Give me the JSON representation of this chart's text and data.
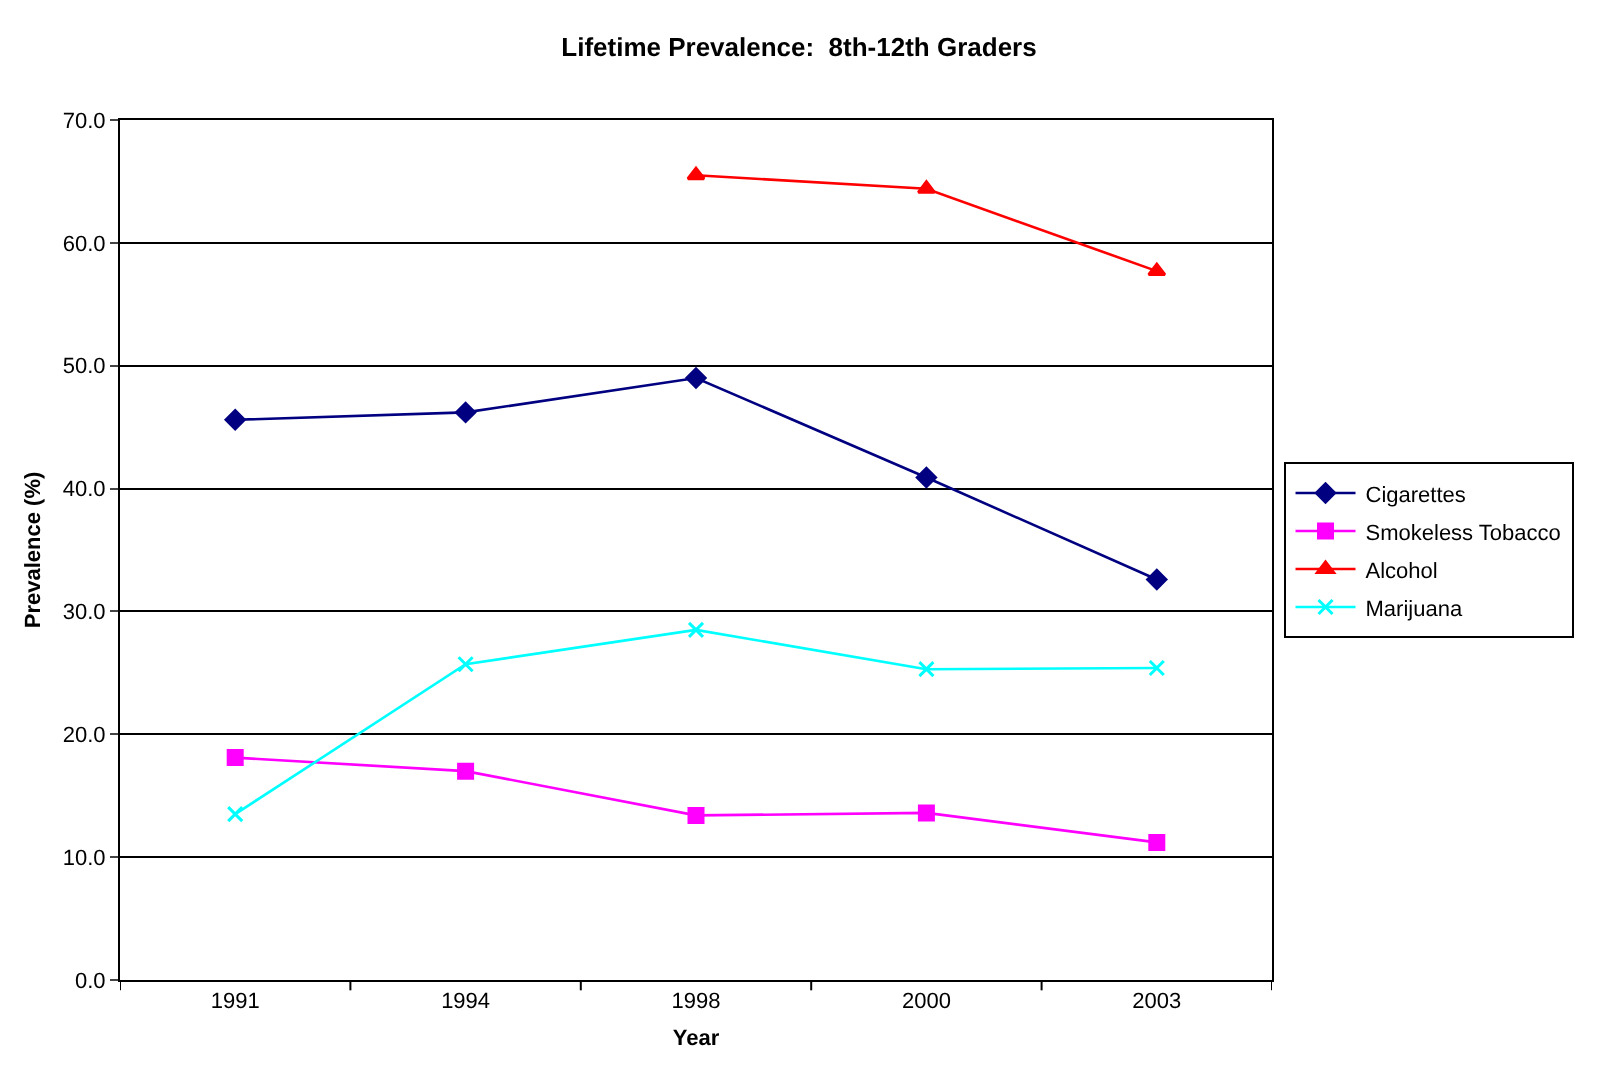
{
  "chart_data": {
    "type": "line",
    "title": "Lifetime Prevalence:  8th-12th Graders",
    "xlabel": "Year",
    "ylabel": "Prevalence (%)",
    "categories": [
      "1991",
      "1994",
      "1998",
      "2000",
      "2003"
    ],
    "series": [
      {
        "name": "Cigarettes",
        "color": "#000080",
        "marker": "diamond",
        "values": [
          45.6,
          46.2,
          49.0,
          40.9,
          32.6
        ]
      },
      {
        "name": "Smokeless Tobacco",
        "color": "#ff00ff",
        "marker": "square",
        "values": [
          18.1,
          17.0,
          13.4,
          13.6,
          11.2
        ]
      },
      {
        "name": "Alcohol",
        "color": "#ff0000",
        "marker": "triangle",
        "values": [
          null,
          null,
          65.5,
          64.4,
          57.7
        ]
      },
      {
        "name": "Marijuana",
        "color": "#00ffff",
        "marker": "cross",
        "values": [
          13.5,
          25.7,
          28.5,
          25.3,
          25.4
        ]
      }
    ],
    "ylim": [
      0,
      70
    ],
    "yticks": [
      {
        "value": 0,
        "label": "0.0"
      },
      {
        "value": 10,
        "label": "10.0"
      },
      {
        "value": 20,
        "label": "20.0"
      },
      {
        "value": 30,
        "label": "30.0"
      },
      {
        "value": 40,
        "label": "40.0"
      },
      {
        "value": 50,
        "label": "50.0"
      },
      {
        "value": 60,
        "label": "60.0"
      },
      {
        "value": 70,
        "label": "70.0"
      }
    ],
    "grid": "y",
    "legend": "right",
    "line_style": "solid"
  }
}
